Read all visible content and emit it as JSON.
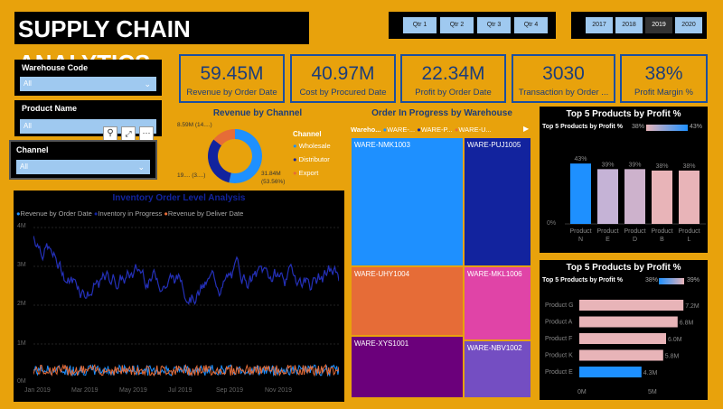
{
  "header": {
    "title": "SUPPLY CHAIN ANALYTICS"
  },
  "quarters": [
    "Qtr 1",
    "Qtr 2",
    "Qtr 3",
    "Qtr 4"
  ],
  "years": [
    "2017",
    "2018",
    "2019",
    "2020"
  ],
  "selected_year": "2019",
  "filters": [
    {
      "label": "Warehouse Code",
      "value": "All"
    },
    {
      "label": "Product Name",
      "value": "All"
    },
    {
      "label": "Channel",
      "value": "All"
    }
  ],
  "kpis": [
    {
      "value": "59.45M",
      "label": "Revenue by Order Date"
    },
    {
      "value": "40.97M",
      "label": "Cost by Procured Date"
    },
    {
      "value": "22.34M",
      "label": "Profit by Order Date"
    },
    {
      "value": "3030",
      "label": "Transaction by Order ..."
    },
    {
      "value": "38%",
      "label": "Profit Margin %"
    }
  ],
  "donut": {
    "title": "Revenue by Channel",
    "legend_title": "Channel",
    "labels": {
      "top": "8.59M (14....)",
      "left": "19.... (3....)",
      "right1": "31.84M",
      "right2": "(53.56%)"
    },
    "legend": [
      {
        "name": "Wholesale",
        "color": "#1e90ff"
      },
      {
        "name": "Distributor",
        "color": "#12239e"
      },
      {
        "name": "Export",
        "color": "#e66c37"
      }
    ],
    "chart_data": {
      "type": "pie",
      "categories": [
        "Wholesale",
        "Distributor",
        "Export"
      ],
      "values": [
        31.84,
        19.0,
        8.59
      ]
    }
  },
  "treemap": {
    "title": "Order In Progress by Warehouse",
    "legend_label": "Wareho...",
    "legend": [
      {
        "name": "WARE-...",
        "color": "#1e90ff"
      },
      {
        "name": "WARE-P...",
        "color": "#12239e"
      },
      {
        "name": "WARE-U...",
        "color": "#e66c37"
      }
    ],
    "tiles": [
      "WARE-NMK1003",
      "WARE-PUJ1005",
      "WARE-UHY1004",
      "WARE-MKL1006",
      "WARE-XYS1001",
      "WARE-NBV1002"
    ]
  },
  "inventory": {
    "title": "Inventory Order Level Analysis",
    "legend": [
      {
        "name": "Revenue by Order Date",
        "color": "#1e90ff"
      },
      {
        "name": "Inventory in Progress",
        "color": "#12239e"
      },
      {
        "name": "Revenue by Deliver Date",
        "color": "#e66c37"
      }
    ],
    "yticks": [
      "4M",
      "3M",
      "2M",
      "1M",
      "0M"
    ],
    "xticks": [
      "Jan 2019",
      "Mar 2019",
      "May 2019",
      "Jul 2019",
      "Sep 2019",
      "Nov 2019"
    ],
    "chart_data": {
      "type": "line",
      "x_range": [
        "Jan 2019",
        "Dec 2019"
      ],
      "ylim": [
        0,
        4
      ],
      "yunit": "M",
      "series": [
        {
          "name": "Inventory in Progress",
          "approx_range": [
            2.0,
            3.9
          ]
        },
        {
          "name": "Revenue by Order Date",
          "approx_range": [
            0.1,
            0.4
          ]
        },
        {
          "name": "Revenue by Deliver Date",
          "approx_range": [
            0.1,
            0.4
          ]
        }
      ]
    }
  },
  "top5v": {
    "title": "Top 5 Products by Profit %",
    "legend_label": "Top 5 Products by Profit %",
    "min": "38%",
    "max": "43%",
    "ytick_top": "",
    "ytick_bottom": "0%",
    "chart_data": {
      "type": "bar",
      "categories": [
        "Product N",
        "Product E",
        "Product D",
        "Product B",
        "Product L"
      ],
      "values": [
        43,
        39,
        39,
        38,
        38
      ],
      "data_labels": [
        "43%",
        "39%",
        "39%",
        "38%",
        "38%"
      ],
      "xlabel_prefix": "Product"
    }
  },
  "top5h": {
    "title": "Top 5 Products by Profit %",
    "legend_label": "Top 5 Products by Profit %",
    "min": "38%",
    "max": "39%",
    "xticks": [
      "0M",
      "5M"
    ],
    "chart_data": {
      "type": "bar",
      "orientation": "horizontal",
      "categories": [
        "Product G",
        "Product A",
        "Product F",
        "Product K",
        "Product E"
      ],
      "values": [
        7.2,
        6.8,
        6.0,
        5.8,
        4.3
      ],
      "data_labels": [
        "7.2M",
        "6.8M",
        "6.0M",
        "5.8M",
        "4.3M"
      ]
    }
  }
}
